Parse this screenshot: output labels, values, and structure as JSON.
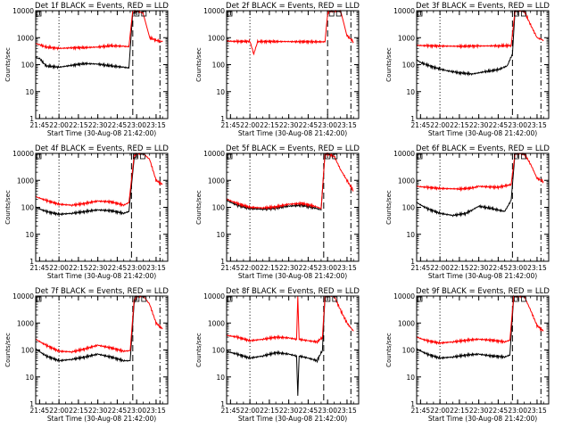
{
  "legend_text": "BLACK = Events, RED = LLD",
  "x_title": "Start Time (30-Aug-08 21:42:00)",
  "y_title": "Counts/sec",
  "x_ticks": [
    "21:45",
    "22:00",
    "22:15",
    "22:30",
    "22:45",
    "23:00",
    "23:15"
  ],
  "y_ticks": [
    "1",
    "10",
    "100",
    "1000",
    "10000"
  ],
  "colors": {
    "events": "#000000",
    "lld": "#ff0000",
    "axes": "#000000"
  },
  "chart_data": [
    {
      "type": "line",
      "title": "Det 1f BLACK = Events, RED = LLD",
      "ylog": true,
      "ylim": [
        1,
        10000
      ],
      "xlim": [
        "21:42",
        "23:24"
      ],
      "markers": [
        "22:00",
        "22:57",
        "23:18"
      ],
      "spike_time": null,
      "series": [
        {
          "name": "Events",
          "x": [
            "21:42",
            "21:45",
            "21:50",
            "22:00",
            "22:10",
            "22:20",
            "22:30",
            "22:40",
            "22:50",
            "22:54",
            "22:57",
            "23:00"
          ],
          "values": [
            180,
            170,
            90,
            80,
            95,
            110,
            105,
            90,
            80,
            75,
            8000,
            10000
          ]
        },
        {
          "name": "LLD",
          "x": [
            "21:42",
            "21:45",
            "21:50",
            "22:00",
            "22:10",
            "22:20",
            "22:30",
            "22:40",
            "22:50",
            "22:54",
            "22:57",
            "23:00",
            "23:05",
            "23:10",
            "23:15",
            "23:20"
          ],
          "values": [
            600,
            550,
            450,
            400,
            420,
            430,
            450,
            500,
            480,
            460,
            10000,
            10000,
            8000,
            1000,
            800,
            700
          ]
        }
      ]
    },
    {
      "type": "line",
      "title": "Det 2f BLACK = Events, RED = LLD",
      "ylog": true,
      "ylim": [
        1,
        10000
      ],
      "xlim": [
        "21:42",
        "23:24"
      ],
      "markers": [
        "22:00",
        "23:00",
        "23:18"
      ],
      "spike_time": "22:03",
      "series": [
        {
          "name": "LLD",
          "x": [
            "21:42",
            "21:50",
            "22:00",
            "22:03",
            "22:06",
            "22:20",
            "22:40",
            "22:58",
            "23:00",
            "23:02",
            "23:10",
            "23:15",
            "23:20"
          ],
          "values": [
            750,
            720,
            730,
            250,
            720,
            720,
            710,
            700,
            8000,
            10000,
            10000,
            1200,
            700
          ]
        }
      ]
    },
    {
      "type": "line",
      "title": "Det 3f BLACK = Events, RED = LLD",
      "ylog": true,
      "ylim": [
        1,
        10000
      ],
      "xlim": [
        "21:42",
        "23:24"
      ],
      "markers": [
        "22:00",
        "22:56",
        "23:18"
      ],
      "spike_time": null,
      "series": [
        {
          "name": "Events",
          "x": [
            "21:42",
            "21:45",
            "21:55",
            "22:05",
            "22:15",
            "22:25",
            "22:35",
            "22:45",
            "22:52",
            "22:56",
            "22:58"
          ],
          "values": [
            150,
            120,
            80,
            60,
            50,
            45,
            55,
            65,
            90,
            250,
            10000
          ]
        },
        {
          "name": "LLD",
          "x": [
            "21:42",
            "21:50",
            "22:00",
            "22:15",
            "22:30",
            "22:45",
            "22:55",
            "22:58",
            "23:05",
            "23:10",
            "23:15",
            "23:20"
          ],
          "values": [
            520,
            500,
            490,
            480,
            490,
            500,
            510,
            10000,
            10000,
            3000,
            1000,
            800
          ]
        }
      ]
    },
    {
      "type": "line",
      "title": "Det 4f BLACK = Events, RED = LLD",
      "ylog": true,
      "ylim": [
        1,
        10000
      ],
      "xlim": [
        "21:42",
        "23:24"
      ],
      "markers": [
        "22:00",
        "22:56",
        "23:18"
      ],
      "spike_time": null,
      "series": [
        {
          "name": "Events",
          "x": [
            "21:42",
            "21:50",
            "22:00",
            "22:10",
            "22:20",
            "22:30",
            "22:40",
            "22:50",
            "22:54",
            "22:58",
            "23:00"
          ],
          "values": [
            100,
            70,
            55,
            60,
            70,
            80,
            75,
            60,
            70,
            6000,
            10000
          ]
        },
        {
          "name": "LLD",
          "x": [
            "21:42",
            "21:50",
            "22:00",
            "22:10",
            "22:20",
            "22:30",
            "22:40",
            "22:50",
            "22:54",
            "22:58",
            "23:00",
            "23:05",
            "23:10",
            "23:15",
            "23:20"
          ],
          "values": [
            250,
            180,
            130,
            120,
            140,
            170,
            160,
            120,
            150,
            8000,
            10000,
            10000,
            6000,
            1000,
            700
          ]
        }
      ]
    },
    {
      "type": "line",
      "title": "Det 5f BLACK = Events, RED = LLD",
      "ylog": true,
      "ylim": [
        1,
        10000
      ],
      "xlim": [
        "21:42",
        "23:24"
      ],
      "markers": [
        "22:00",
        "22:57",
        "23:18"
      ],
      "spike_time": null,
      "series": [
        {
          "name": "Events",
          "x": [
            "21:42",
            "21:50",
            "22:00",
            "22:10",
            "22:20",
            "22:30",
            "22:40",
            "22:50",
            "22:55",
            "22:58"
          ],
          "values": [
            180,
            120,
            90,
            85,
            95,
            110,
            120,
            95,
            80,
            10000
          ]
        },
        {
          "name": "LLD",
          "x": [
            "21:42",
            "21:50",
            "22:00",
            "22:10",
            "22:20",
            "22:30",
            "22:40",
            "22:50",
            "22:55",
            "22:58",
            "23:05",
            "23:10",
            "23:15",
            "23:20"
          ],
          "values": [
            200,
            140,
            100,
            95,
            105,
            130,
            140,
            110,
            90,
            10000,
            8000,
            2500,
            1000,
            400
          ]
        }
      ]
    },
    {
      "type": "line",
      "title": "Det 6f BLACK = Events, RED = LLD",
      "ylog": true,
      "ylim": [
        1,
        10000
      ],
      "xlim": [
        "21:42",
        "23:24"
      ],
      "markers": [
        "22:00",
        "22:56",
        "23:18"
      ],
      "spike_time": null,
      "series": [
        {
          "name": "Events",
          "x": [
            "21:42",
            "21:50",
            "22:00",
            "22:10",
            "22:20",
            "22:25",
            "22:30",
            "22:40",
            "22:50",
            "22:55",
            "22:58"
          ],
          "values": [
            150,
            90,
            60,
            50,
            60,
            80,
            110,
            90,
            70,
            180,
            10000
          ]
        },
        {
          "name": "LLD",
          "x": [
            "21:42",
            "21:50",
            "22:00",
            "22:15",
            "22:25",
            "22:30",
            "22:45",
            "22:55",
            "22:58",
            "23:05",
            "23:10",
            "23:15",
            "23:20"
          ],
          "values": [
            600,
            550,
            500,
            480,
            520,
            600,
            550,
            700,
            10000,
            10000,
            4000,
            1200,
            900
          ]
        }
      ]
    },
    {
      "type": "line",
      "title": "Det 7f BLACK = Events, RED = LLD",
      "ylog": true,
      "ylim": [
        1,
        10000
      ],
      "xlim": [
        "21:42",
        "23:24"
      ],
      "markers": [
        "22:00",
        "22:57",
        "23:18"
      ],
      "spike_time": null,
      "series": [
        {
          "name": "Events",
          "x": [
            "21:42",
            "21:50",
            "22:00",
            "22:10",
            "22:20",
            "22:30",
            "22:40",
            "22:50",
            "22:55",
            "22:58",
            "23:00"
          ],
          "values": [
            110,
            60,
            40,
            45,
            55,
            70,
            55,
            40,
            40,
            5000,
            10000
          ]
        },
        {
          "name": "LLD",
          "x": [
            "21:42",
            "21:50",
            "22:00",
            "22:10",
            "22:20",
            "22:30",
            "22:40",
            "22:50",
            "22:55",
            "22:58",
            "23:00",
            "23:05",
            "23:10",
            "23:15",
            "23:20"
          ],
          "values": [
            250,
            150,
            90,
            85,
            110,
            150,
            120,
            90,
            95,
            7000,
            10000,
            10000,
            5000,
            1000,
            600
          ]
        }
      ]
    },
    {
      "type": "line",
      "title": "Det 8f BLACK = Events, RED = LLD",
      "ylog": true,
      "ylim": [
        1,
        10000
      ],
      "xlim": [
        "21:42",
        "23:24"
      ],
      "markers": [
        "22:00",
        "22:57",
        "23:18"
      ],
      "spike_time": "22:37",
      "series": [
        {
          "name": "Events",
          "x": [
            "21:42",
            "21:50",
            "22:00",
            "22:10",
            "22:20",
            "22:30",
            "22:36",
            "22:37",
            "22:38",
            "22:45",
            "22:52",
            "22:56",
            "22:58"
          ],
          "values": [
            90,
            70,
            50,
            60,
            80,
            70,
            60,
            2,
            60,
            50,
            40,
            100,
            10000
          ]
        },
        {
          "name": "LLD",
          "x": [
            "21:42",
            "21:50",
            "22:00",
            "22:10",
            "22:20",
            "22:30",
            "22:36",
            "22:37",
            "22:38",
            "22:45",
            "22:52",
            "22:56",
            "22:58",
            "23:05",
            "23:10",
            "23:15",
            "23:20"
          ],
          "values": [
            350,
            300,
            220,
            250,
            300,
            280,
            250,
            10000,
            250,
            220,
            200,
            300,
            10000,
            10000,
            3000,
            1000,
            500
          ]
        }
      ]
    },
    {
      "type": "line",
      "title": "Det 9f BLACK = Events, RED = LLD",
      "ylog": true,
      "ylim": [
        1,
        10000
      ],
      "xlim": [
        "21:42",
        "23:24"
      ],
      "markers": [
        "22:00",
        "22:56",
        "23:18"
      ],
      "spike_time": null,
      "series": [
        {
          "name": "Events",
          "x": [
            "21:42",
            "21:50",
            "22:00",
            "22:10",
            "22:20",
            "22:30",
            "22:40",
            "22:50",
            "22:54",
            "22:57"
          ],
          "values": [
            110,
            70,
            50,
            55,
            65,
            70,
            60,
            55,
            65,
            9000
          ]
        },
        {
          "name": "LLD",
          "x": [
            "21:42",
            "21:50",
            "22:00",
            "22:10",
            "22:20",
            "22:30",
            "22:40",
            "22:50",
            "22:54",
            "22:57",
            "23:00",
            "23:05",
            "23:10",
            "23:15",
            "23:20"
          ],
          "values": [
            300,
            220,
            180,
            200,
            230,
            250,
            230,
            200,
            230,
            10000,
            10000,
            10000,
            3000,
            800,
            500
          ]
        }
      ]
    }
  ]
}
